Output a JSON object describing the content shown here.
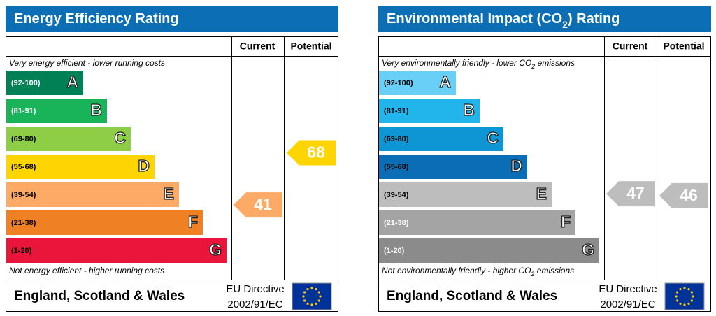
{
  "panels": [
    {
      "title": [
        "Energy Efficiency Rating"
      ],
      "headers": [
        "Current",
        "Potential"
      ],
      "top_note": [
        "Very energy efficient - lower running costs"
      ],
      "bottom_note": [
        "Not energy efficient - higher running costs"
      ],
      "bands": [
        {
          "label": "(92-100)",
          "letter": "A",
          "color": "#008054",
          "label_color": "#ffffff"
        },
        {
          "label": "(81-91)",
          "letter": "B",
          "color": "#19b459",
          "label_color": "#ffffff"
        },
        {
          "label": "(69-80)",
          "letter": "C",
          "color": "#8dce46",
          "label_color": "#000000"
        },
        {
          "label": "(55-68)",
          "letter": "D",
          "color": "#ffd500",
          "label_color": "#000000"
        },
        {
          "label": "(39-54)",
          "letter": "E",
          "color": "#fcaa65",
          "label_color": "#000000"
        },
        {
          "label": "(21-38)",
          "letter": "F",
          "color": "#ef8023",
          "label_color": "#000000"
        },
        {
          "label": "(1-20)",
          "letter": "G",
          "color": "#e9153b",
          "label_color": "#000000"
        }
      ],
      "current": 41,
      "potential": 68,
      "footer": {
        "region": "England, Scotland & Wales",
        "directive": [
          "EU Directive",
          "2002/91/EC"
        ]
      }
    },
    {
      "title": [
        "Environmental Impact (CO",
        "2",
        ") Rating"
      ],
      "headers": [
        "Current",
        "Potential"
      ],
      "top_note": [
        "Very environmentally friendly - lower CO",
        "2",
        " emissions"
      ],
      "bottom_note": [
        "Not environmentally friendly - higher CO",
        "2",
        " emissions"
      ],
      "bands": [
        {
          "label": "(92-100)",
          "letter": "A",
          "color": "#6acff6",
          "label_color": "#000000"
        },
        {
          "label": "(81-91)",
          "letter": "B",
          "color": "#22b5ec",
          "label_color": "#000000"
        },
        {
          "label": "(69-80)",
          "letter": "C",
          "color": "#0e95d4",
          "label_color": "#000000"
        },
        {
          "label": "(55-68)",
          "letter": "D",
          "color": "#0b6db5",
          "label_color": "#000000"
        },
        {
          "label": "(39-54)",
          "letter": "E",
          "color": "#bdbdbd",
          "label_color": "#000000"
        },
        {
          "label": "(21-38)",
          "letter": "F",
          "color": "#a4a4a4",
          "label_color": "#ffffff"
        },
        {
          "label": "(1-20)",
          "letter": "G",
          "color": "#8b8b8b",
          "label_color": "#ffffff"
        }
      ],
      "current": 47,
      "potential": 46,
      "footer": {
        "region": "England, Scotland & Wales",
        "directive": [
          "EU Directive",
          "2002/91/EC"
        ]
      }
    }
  ]
}
